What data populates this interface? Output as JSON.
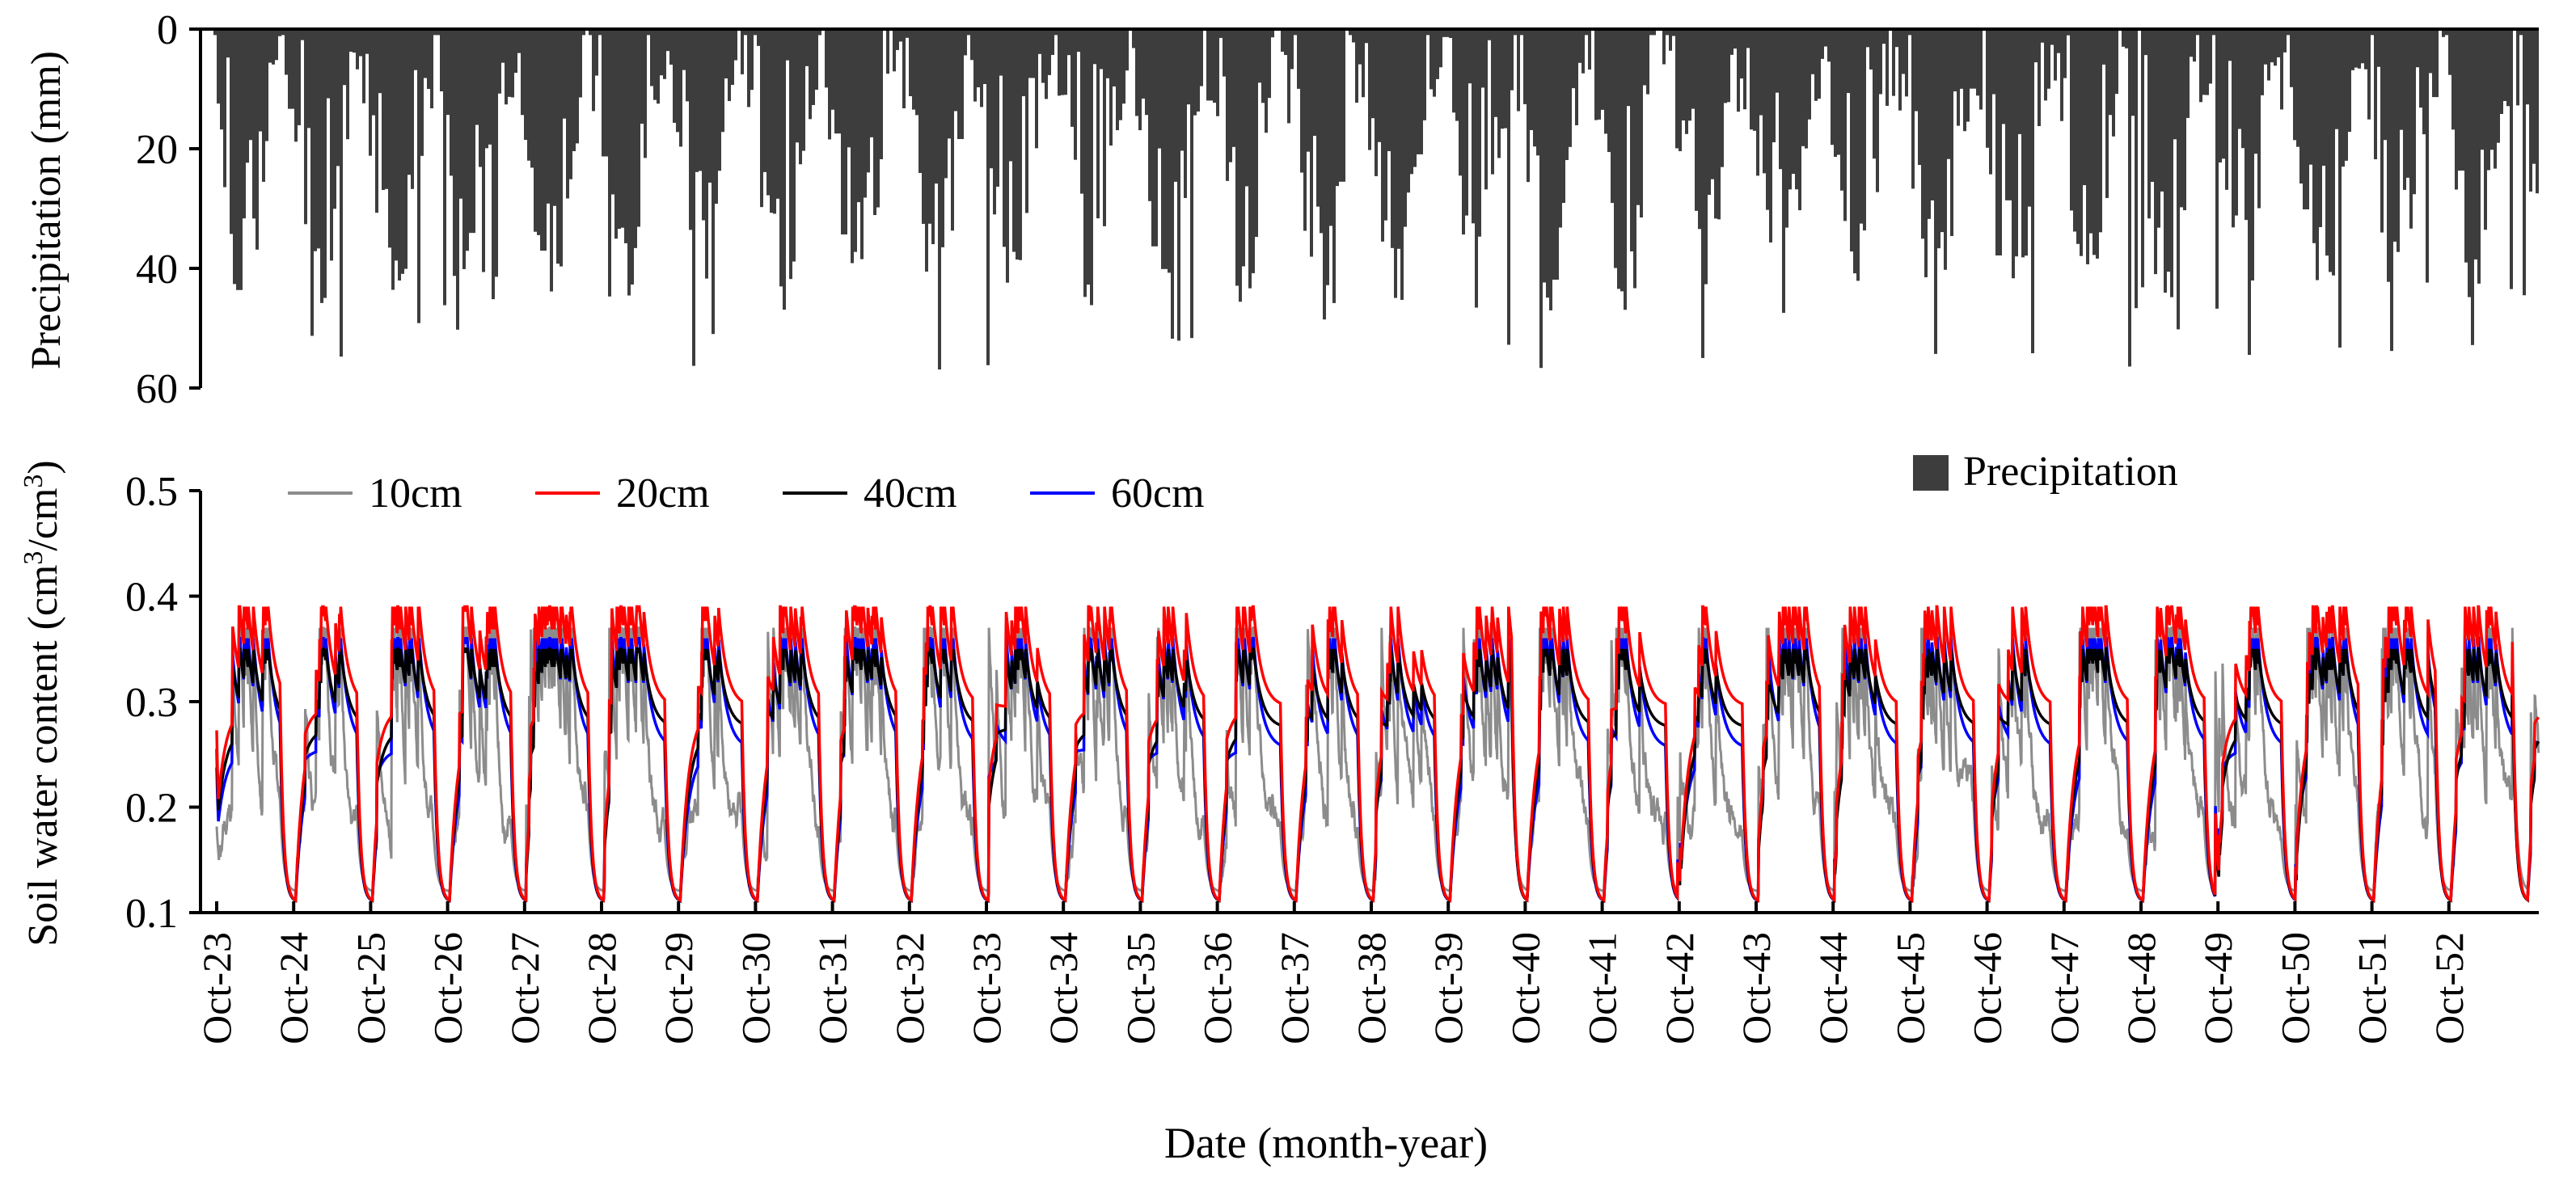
{
  "chart_data": [
    {
      "type": "bar",
      "title": "",
      "xlabel": "",
      "ylabel": "Precipitation (mm)",
      "ylim": [
        0,
        60
      ],
      "y_inverted": true,
      "yticks": [
        "0",
        "20",
        "40",
        "60"
      ],
      "legend": {
        "label": "Precipitation",
        "color": "#3d3d3d",
        "placement": "upper-right"
      },
      "color": "#3d3d3d",
      "series": [
        {
          "name": "Precipitation",
          "values": "approx. daily precipitation (mm), Oct-23 to Oct-53, generated seasonally; peaks ~57 mm"
        }
      ]
    },
    {
      "type": "line",
      "title": "",
      "xlabel": "Date (month-year)",
      "ylabel": "Soil water content (cm3/cm3)",
      "ylabel_parts": [
        "Soil water content (cm",
        "3",
        "/cm",
        "3",
        ")"
      ],
      "ylim": [
        0.1,
        0.5
      ],
      "yticks": [
        "0.1",
        "0.2",
        "0.3",
        "0.4",
        "0.5"
      ],
      "categories": [
        "Oct-23",
        "Oct-24",
        "Oct-25",
        "Oct-26",
        "Oct-27",
        "Oct-28",
        "Oct-29",
        "Oct-30",
        "Oct-31",
        "Oct-32",
        "Oct-33",
        "Oct-34",
        "Oct-35",
        "Oct-36",
        "Oct-37",
        "Oct-38",
        "Oct-39",
        "Oct-40",
        "Oct-41",
        "Oct-42",
        "Oct-43",
        "Oct-44",
        "Oct-45",
        "Oct-46",
        "Oct-47",
        "Oct-48",
        "Oct-49",
        "Oct-50",
        "Oct-51",
        "Oct-52"
      ],
      "series": [
        {
          "name": "10cm",
          "color": "#8c8c8c",
          "baseline": 0.19,
          "min": 0.11,
          "peak": 0.37
        },
        {
          "name": "20cm",
          "color": "#ff0000",
          "baseline": 0.295,
          "min": 0.11,
          "peak": 0.39
        },
        {
          "name": "40cm",
          "color": "#000000",
          "baseline": 0.275,
          "min": 0.11,
          "peak": 0.35
        },
        {
          "name": "60cm",
          "color": "#0000ff",
          "baseline": 0.255,
          "min": 0.11,
          "peak": 0.36
        }
      ]
    }
  ]
}
